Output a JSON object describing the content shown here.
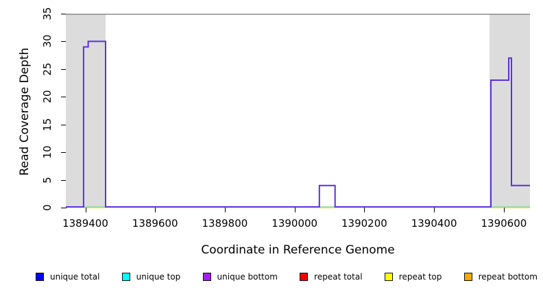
{
  "chart_data": {
    "type": "line",
    "subtype": "step-coverage",
    "title": "",
    "xlabel": "Coordinate in Reference Genome",
    "ylabel": "Read Coverage Depth",
    "xlim": [
      1389344,
      1390675
    ],
    "ylim": [
      0,
      35
    ],
    "x_ticks": [
      "1389400",
      "1389600",
      "1389800",
      "1390000",
      "1390200",
      "1390400",
      "1390600"
    ],
    "x_tick_values": [
      1389400,
      1389600,
      1389800,
      1390000,
      1390200,
      1390400,
      1390600
    ],
    "y_ticks": [
      "0",
      "5",
      "10",
      "15",
      "20",
      "25",
      "30",
      "35"
    ],
    "y_tick_values": [
      0,
      5,
      10,
      15,
      20,
      25,
      30,
      35
    ],
    "grid": false,
    "top_border_color": "#8a8a8a",
    "highlight_regions": [
      {
        "name": "left-shaded-region",
        "start": 1389344,
        "end": 1389458,
        "color": "#dcdcdc"
      },
      {
        "name": "right-shaded-region",
        "start": 1390559,
        "end": 1390675,
        "color": "#dcdcdc"
      }
    ],
    "series": [
      {
        "name": "unique-coverage-line",
        "legend_match": [
          "unique total",
          "unique bottom"
        ],
        "color": "#5a2fe0",
        "steps": [
          [
            1389344,
            1389395,
            0
          ],
          [
            1389395,
            1389408,
            29
          ],
          [
            1389408,
            1389458,
            30
          ],
          [
            1389458,
            1390071,
            0
          ],
          [
            1390071,
            1390116,
            4
          ],
          [
            1390116,
            1390563,
            0
          ],
          [
            1390563,
            1390614,
            23
          ],
          [
            1390614,
            1390622,
            27
          ],
          [
            1390622,
            1390675,
            4
          ]
        ]
      },
      {
        "name": "zero-baseline-overlap-green",
        "color": "#8fd88f",
        "layer": "top",
        "segments": [
          [
            1389395,
            1389458
          ],
          [
            1390071,
            1390116
          ],
          [
            1390563,
            1390675
          ]
        ]
      },
      {
        "name": "zero-baseline-overlap-yellow",
        "color": "#e6e68a",
        "layer": "under",
        "segments": [
          [
            1389395,
            1389458
          ],
          [
            1390071,
            1390116
          ],
          [
            1390563,
            1390675
          ]
        ]
      }
    ],
    "legend": {
      "position": "bottom",
      "entries": [
        {
          "label": "unique total",
          "color": "#0000ff"
        },
        {
          "label": "unique top",
          "color": "#00ffff"
        },
        {
          "label": "unique bottom",
          "color": "#a020f0"
        },
        {
          "label": "repeat total",
          "color": "#ee0000"
        },
        {
          "label": "repeat top",
          "color": "#ffff00"
        },
        {
          "label": "repeat bottom",
          "color": "#ffa500"
        }
      ]
    }
  }
}
